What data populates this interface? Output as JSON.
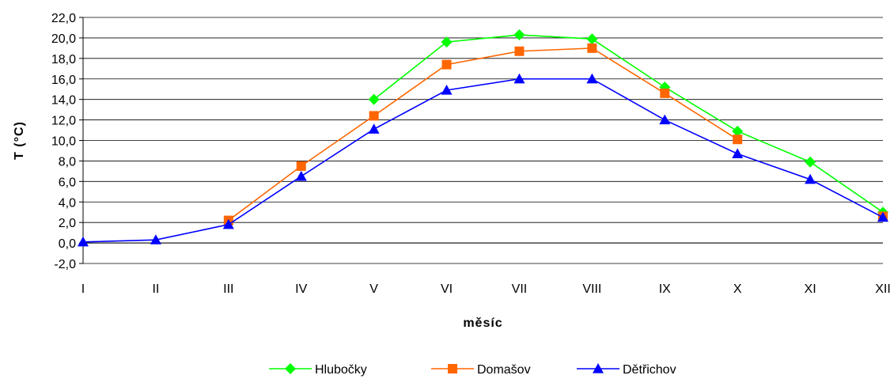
{
  "chart_data": {
    "type": "line",
    "title": "",
    "xlabel": "měsíc",
    "ylabel": "T (°C)",
    "categories": [
      "I",
      "II",
      "III",
      "IV",
      "V",
      "VI",
      "VII",
      "VIII",
      "IX",
      "X",
      "XI",
      "XII"
    ],
    "ylim": [
      -2,
      22
    ],
    "yticks": [
      "-2,0",
      "0,0",
      "2,0",
      "4,0",
      "6,0",
      "8,0",
      "10,0",
      "12,0",
      "14,0",
      "16,0",
      "18,0",
      "20,0",
      "22,0"
    ],
    "grid": true,
    "legend_position": "bottom",
    "series": [
      {
        "name": "Hlubočky",
        "color": "#00ff00",
        "marker": "diamond",
        "values": [
          null,
          null,
          null,
          null,
          14.0,
          19.6,
          20.3,
          19.9,
          15.2,
          10.9,
          7.9,
          3.0
        ]
      },
      {
        "name": "Domašov",
        "color": "#ff6600",
        "marker": "square",
        "values": [
          null,
          null,
          2.2,
          7.5,
          12.4,
          17.4,
          18.7,
          19.0,
          14.6,
          10.1,
          null,
          2.6
        ]
      },
      {
        "name": "Dětřichov",
        "color": "#0000ff",
        "marker": "triangle",
        "values": [
          0.1,
          0.3,
          1.8,
          6.5,
          11.1,
          14.9,
          16.0,
          16.0,
          12.0,
          8.7,
          6.2,
          2.5
        ]
      }
    ]
  }
}
